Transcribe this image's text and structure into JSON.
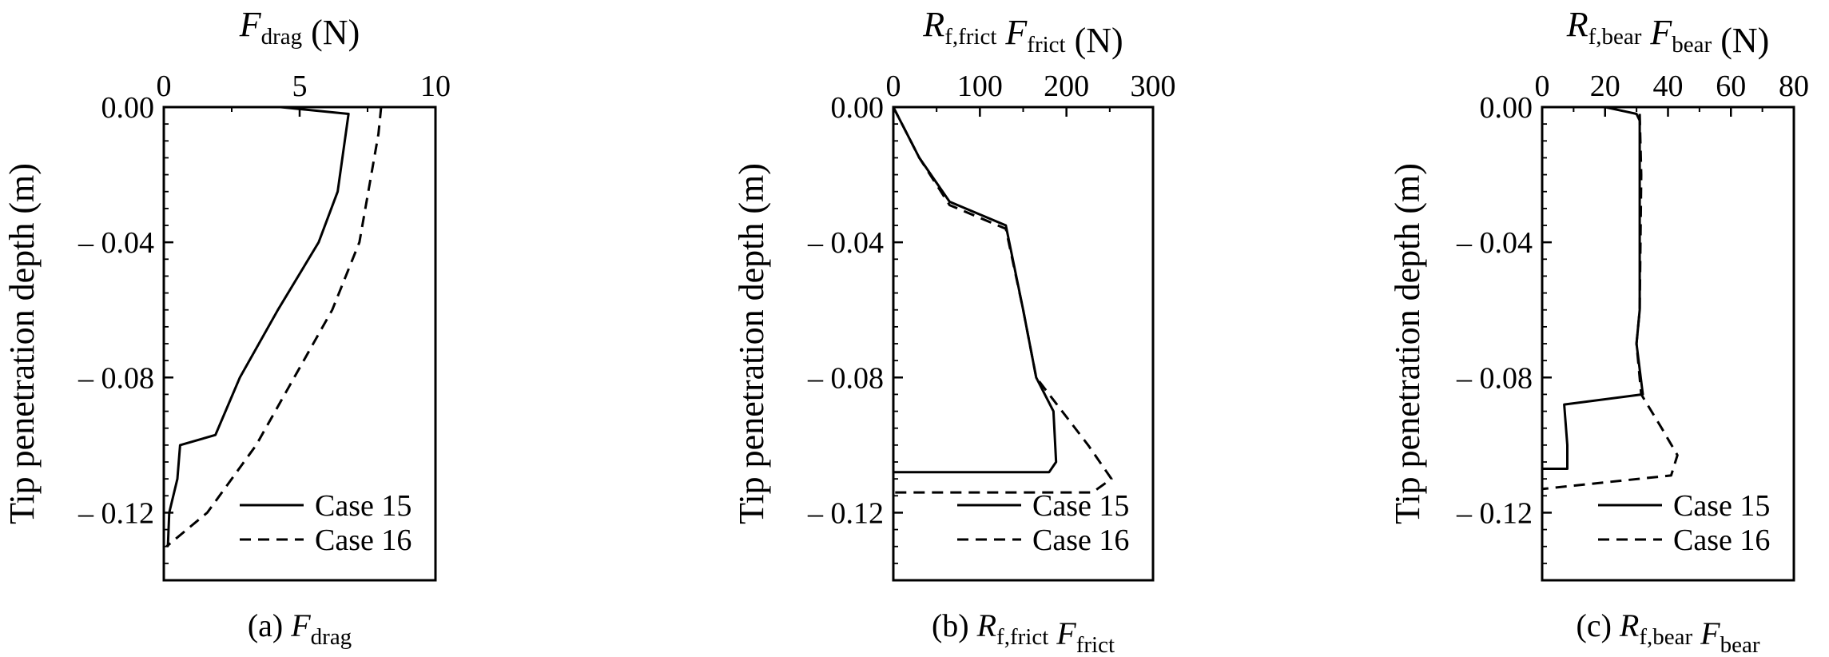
{
  "figure": {
    "y_axis_label": "Tip penetration depth (m)"
  },
  "panels": [
    {
      "caption": {
        "prefix": "(a) ",
        "parts": [
          [
            "F",
            "drag"
          ]
        ]
      },
      "x_title": {
        "parts": [
          [
            "F",
            "drag"
          ]
        ],
        "unit": " (N)"
      },
      "legend": [
        "Case 15",
        "Case 16"
      ]
    },
    {
      "caption": {
        "prefix": "(b) ",
        "parts": [
          [
            "R",
            "f,frict"
          ],
          [
            "F",
            "frict"
          ]
        ]
      },
      "x_title": {
        "parts": [
          [
            "R",
            "f,frict"
          ],
          [
            "F",
            "frict"
          ]
        ],
        "unit": " (N)"
      },
      "legend": [
        "Case 15",
        "Case 16"
      ]
    },
    {
      "caption": {
        "prefix": "(c) ",
        "parts": [
          [
            "R",
            "f,bear"
          ],
          [
            "F",
            "bear"
          ]
        ]
      },
      "x_title": {
        "parts": [
          [
            "R",
            "f,bear"
          ],
          [
            "F",
            "bear"
          ]
        ],
        "unit": " (N)"
      },
      "legend": [
        "Case 15",
        "Case 16"
      ]
    }
  ],
  "chart_data": [
    {
      "type": "line",
      "x_axis_position": "top",
      "xlim": [
        0,
        10
      ],
      "x_ticks": [
        0,
        5,
        10
      ],
      "ylim": [
        0,
        0.14
      ],
      "y_inverted": true,
      "y_ticks": [
        0.0,
        0.04,
        0.08,
        0.12
      ],
      "y_tick_labels": [
        "0.00",
        "0.04",
        "0.08",
        "0.12"
      ],
      "legend_position": "bottom-right",
      "series": [
        {
          "name": "Case 15",
          "style": "solid",
          "points": [
            [
              4.3,
              0.0
            ],
            [
              6.8,
              0.002
            ],
            [
              6.4,
              0.025
            ],
            [
              5.7,
              0.04
            ],
            [
              4.2,
              0.06
            ],
            [
              2.8,
              0.08
            ],
            [
              1.9,
              0.097
            ],
            [
              0.6,
              0.1
            ],
            [
              0.5,
              0.11
            ],
            [
              0.2,
              0.12
            ],
            [
              0.15,
              0.13
            ]
          ]
        },
        {
          "name": "Case 16",
          "style": "dashed",
          "points": [
            [
              8.0,
              0.0
            ],
            [
              7.9,
              0.008
            ],
            [
              7.2,
              0.04
            ],
            [
              6.2,
              0.06
            ],
            [
              4.8,
              0.08
            ],
            [
              3.4,
              0.1
            ],
            [
              1.6,
              0.12
            ],
            [
              0.1,
              0.13
            ]
          ]
        }
      ]
    },
    {
      "type": "line",
      "x_axis_position": "top",
      "xlim": [
        0,
        300
      ],
      "x_ticks": [
        0,
        100,
        200,
        300
      ],
      "ylim": [
        0,
        0.14
      ],
      "y_inverted": true,
      "y_ticks": [
        0.0,
        0.04,
        0.08,
        0.12
      ],
      "y_tick_labels": [
        "0.00",
        "0.04",
        "0.08",
        "0.12"
      ],
      "legend_position": "bottom-right",
      "series": [
        {
          "name": "Case 15",
          "style": "solid",
          "points": [
            [
              0,
              0.0
            ],
            [
              30,
              0.015
            ],
            [
              65,
              0.028
            ],
            [
              130,
              0.035
            ],
            [
              150,
              0.06
            ],
            [
              165,
              0.08
            ],
            [
              185,
              0.09
            ],
            [
              188,
              0.105
            ],
            [
              180,
              0.108
            ],
            [
              0,
              0.108
            ]
          ]
        },
        {
          "name": "Case 16",
          "style": "dashed",
          "points": [
            [
              0,
              0.0
            ],
            [
              30,
              0.015
            ],
            [
              65,
              0.029
            ],
            [
              130,
              0.036
            ],
            [
              150,
              0.06
            ],
            [
              165,
              0.08
            ],
            [
              180,
              0.085
            ],
            [
              225,
              0.1
            ],
            [
              252,
              0.11
            ],
            [
              230,
              0.114
            ],
            [
              0,
              0.114
            ]
          ]
        }
      ]
    },
    {
      "type": "line",
      "x_axis_position": "top",
      "xlim": [
        0,
        80
      ],
      "x_ticks": [
        0,
        20,
        40,
        60,
        80
      ],
      "ylim": [
        0,
        0.14
      ],
      "y_inverted": true,
      "y_ticks": [
        0.0,
        0.04,
        0.08,
        0.12
      ],
      "y_tick_labels": [
        "0.00",
        "0.04",
        "0.08",
        "0.12"
      ],
      "legend_position": "bottom-right",
      "series": [
        {
          "name": "Case 15",
          "style": "solid",
          "points": [
            [
              20,
              0.0
            ],
            [
              30,
              0.002
            ],
            [
              31,
              0.004
            ],
            [
              31,
              0.02
            ],
            [
              31,
              0.06
            ],
            [
              30,
              0.07
            ],
            [
              32,
              0.085
            ],
            [
              7,
              0.088
            ],
            [
              8,
              0.1
            ],
            [
              8,
              0.107
            ],
            [
              0,
              0.107
            ]
          ]
        },
        {
          "name": "Case 16",
          "style": "dashed",
          "points": [
            [
              31,
              0.002
            ],
            [
              31.5,
              0.02
            ],
            [
              31,
              0.06
            ],
            [
              30,
              0.07
            ],
            [
              31.5,
              0.085
            ],
            [
              38,
              0.095
            ],
            [
              43,
              0.103
            ],
            [
              41,
              0.109
            ],
            [
              10,
              0.112
            ],
            [
              0,
              0.113
            ]
          ]
        }
      ]
    }
  ]
}
